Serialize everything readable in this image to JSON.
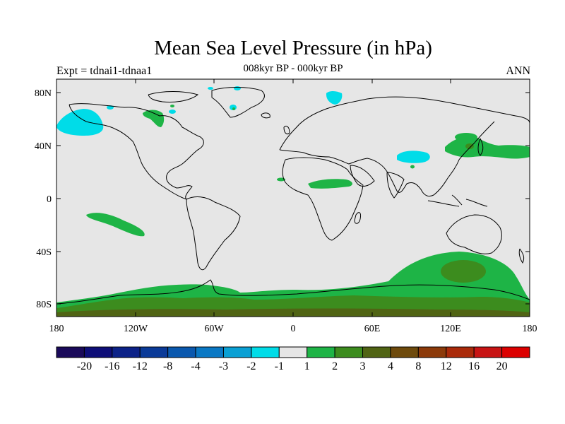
{
  "title": "Mean Sea Level Pressure (in hPa)",
  "subtitle": "008kyr BP - 000kyr BP",
  "left_label": "Expt = tdnai1-tdnaa1",
  "right_label": "ANN",
  "axes": {
    "lat_ticks": [
      "80N",
      "40N",
      "0",
      "40S",
      "80S"
    ],
    "lon_ticks": [
      "180",
      "120W",
      "60W",
      "0",
      "60E",
      "120E",
      "180"
    ]
  },
  "colorbar": {
    "labels": [
      "-20",
      "-16",
      "-12",
      "-8",
      "-4",
      "-3",
      "-2",
      "-1",
      "1",
      "2",
      "3",
      "4",
      "8",
      "12",
      "16",
      "20"
    ],
    "colors": [
      "#1a0a5a",
      "#0e0e78",
      "#0c2288",
      "#0a3a98",
      "#0a58ae",
      "#0a78c4",
      "#0aa0d4",
      "#00dce8",
      "#e6e6e6",
      "#1eb446",
      "#3c8c1e",
      "#506414",
      "#6e4a0c",
      "#8c3a0a",
      "#aa2a0a",
      "#c81414",
      "#dc0000"
    ]
  },
  "colors": {
    "background": "#e6e6e6",
    "weak_negative": "#00dce8",
    "weak_positive": "#1eb446",
    "moderate_positive": "#3c8c1e",
    "strong_positive": "#506414"
  }
}
